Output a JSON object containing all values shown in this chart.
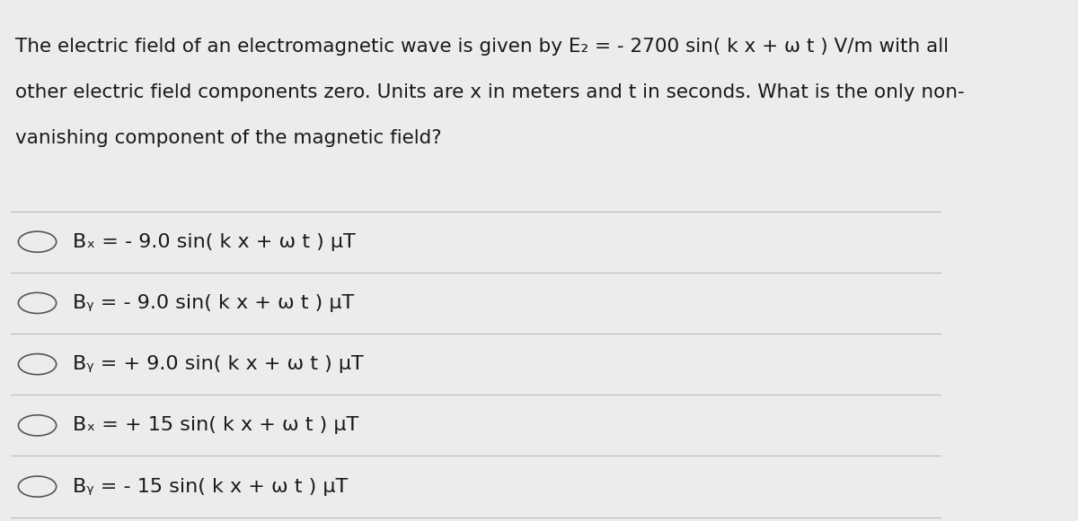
{
  "background_color": "#ececec",
  "text_color": "#1a1a1a",
  "question_lines": [
    "The electric field of an electromagnetic wave is given by E₂ = - 2700 sin( k x + ω t ) V/m with all",
    "other electric field components zero. Units are x in meters and t in seconds. What is the only non-",
    "vanishing component of the magnetic field?"
  ],
  "options": [
    "Bₓ = - 9.0 sin( k x + ω t ) μT",
    "Bᵧ = - 9.0 sin( k x + ω t ) μT",
    "Bᵧ = + 9.0 sin( k x + ω t ) μT",
    "Bₓ = + 15 sin( k x + ω t ) μT",
    "Bᵧ = - 15 sin( k x + ω t ) μT"
  ],
  "divider_color": "#bbbbbb",
  "circle_color": "#555555",
  "font_size_question": 15.5,
  "font_size_options": 16.0,
  "figsize": [
    12.0,
    5.81
  ]
}
